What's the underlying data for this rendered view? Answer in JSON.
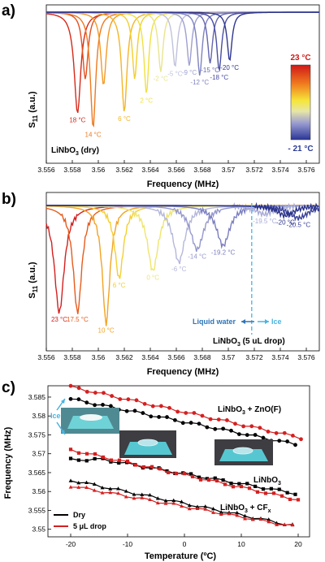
{
  "colors": {
    "red": "#d42020",
    "black": "#000000",
    "cyan": "#48b4e0",
    "blue_arrow": "#2d74b8",
    "cold_blue": "#2b3a96",
    "hot_red": "#d01818"
  },
  "chart_data": [
    {
      "type": "line",
      "panel_label": "a)",
      "xlabel": "Frequency (MHz)",
      "ylabel": "S11 (a.u.)",
      "xlim": [
        3.556,
        3.577
      ],
      "xticks": [
        "3.556",
        "3.558",
        "3.56",
        "3.562",
        "3.564",
        "3.566",
        "3.568",
        "3.57",
        "3.572",
        "3.574",
        "3.576"
      ],
      "inset": "LiNbO3 (dry)",
      "colorbar": {
        "top_label": "23 °C",
        "bottom_label": "- 21 °C"
      },
      "dips": [
        {
          "temp_label": "18 °C",
          "center": 3.5584,
          "depth": 0.83,
          "width": 0.0003,
          "color": "#d42a1a"
        },
        {
          "temp_label": "",
          "center": 3.559,
          "depth": 0.55,
          "width": 0.00025,
          "color": "#e25020"
        },
        {
          "temp_label": "14 °C",
          "center": 3.5596,
          "depth": 0.95,
          "width": 0.00025,
          "color": "#ee7a20"
        },
        {
          "temp_label": "",
          "center": 3.5604,
          "depth": 0.6,
          "width": 0.00025,
          "color": "#f29a26"
        },
        {
          "temp_label": "6 °C",
          "center": 3.562,
          "depth": 0.82,
          "width": 0.00025,
          "color": "#f4b528"
        },
        {
          "temp_label": "",
          "center": 3.5628,
          "depth": 0.55,
          "width": 0.00022,
          "color": "#f2cf2e"
        },
        {
          "temp_label": "2 °C",
          "center": 3.5637,
          "depth": 0.67,
          "width": 0.00022,
          "color": "#f0e040"
        },
        {
          "temp_label": "-2 °C",
          "center": 3.5648,
          "depth": 0.49,
          "width": 0.00022,
          "color": "#e8e590"
        },
        {
          "temp_label": "-5 °C",
          "center": 3.5659,
          "depth": 0.45,
          "width": 0.00022,
          "color": "#c0c2dc"
        },
        {
          "temp_label": "-9 °C",
          "center": 3.567,
          "depth": 0.44,
          "width": 0.00022,
          "color": "#9ea0cf"
        },
        {
          "temp_label": "-12 °C",
          "center": 3.5678,
          "depth": 0.52,
          "width": 0.00022,
          "color": "#7f83c0"
        },
        {
          "temp_label": "-15 °C",
          "center": 3.5686,
          "depth": 0.42,
          "width": 0.00022,
          "color": "#6466b0"
        },
        {
          "temp_label": "-18 °C",
          "center": 3.5693,
          "depth": 0.48,
          "width": 0.00022,
          "color": "#4a4ea2"
        },
        {
          "temp_label": "-20 °C",
          "center": 3.5701,
          "depth": 0.4,
          "width": 0.00022,
          "color": "#2e3690"
        }
      ]
    },
    {
      "type": "line",
      "panel_label": "b)",
      "xlabel": "Frequency (MHz)",
      "ylabel": "S11 (a.u.)",
      "xlim": [
        3.556,
        3.577
      ],
      "xticks": [
        "3.556",
        "3.558",
        "3.56",
        "3.562",
        "3.564",
        "3.566",
        "3.568",
        "3.57",
        "3.572",
        "3.574",
        "3.576"
      ],
      "inset": "LiNbO3 (5 uL drop)",
      "phase_line_x": 3.5718,
      "liquid_label": "Liquid water",
      "ice_label": "Ice",
      "dips": [
        {
          "temp_label": "23 °C",
          "center": 3.557,
          "depth": 0.85,
          "width": 0.00045,
          "color": "#d42020"
        },
        {
          "temp_label": "17.5 °C",
          "center": 3.5584,
          "depth": 0.85,
          "width": 0.0004,
          "color": "#e55c1e"
        },
        {
          "temp_label": "10 °C",
          "center": 3.5606,
          "depth": 0.94,
          "width": 0.00035,
          "color": "#f2a324"
        },
        {
          "temp_label": "6 °C",
          "center": 3.5616,
          "depth": 0.58,
          "width": 0.0004,
          "color": "#f4cf30"
        },
        {
          "temp_label": "0 °C",
          "center": 3.5642,
          "depth": 0.52,
          "width": 0.0005,
          "color": "#efe56e"
        },
        {
          "temp_label": "-6 °C",
          "center": 3.5662,
          "depth": 0.45,
          "width": 0.00055,
          "color": "#b4b7da"
        },
        {
          "temp_label": "-14 °C",
          "center": 3.5676,
          "depth": 0.35,
          "width": 0.0006,
          "color": "#9598cc"
        },
        {
          "temp_label": "-19.2 °C",
          "center": 3.5696,
          "depth": 0.32,
          "width": 0.0006,
          "color": "#7a7ec0"
        },
        {
          "temp_label": "-19.5 °C",
          "center": 3.5728,
          "depth": 0.07,
          "width": 0.0008,
          "color": "#a8acd6"
        },
        {
          "temp_label": "-20.5 °C",
          "center": 3.5754,
          "depth": 0.1,
          "width": 0.0009,
          "color": "#3a4298"
        },
        {
          "temp_label": "-20 °C",
          "center": 3.5744,
          "depth": 0.08,
          "width": 0.0008,
          "color": "#2a3288"
        }
      ]
    },
    {
      "type": "line",
      "panel_label": "c)",
      "xlabel": "Temperature (ºC)",
      "ylabel": "Frequency (MHz)",
      "xlim": [
        -24,
        22
      ],
      "ylim": [
        3.548,
        3.588
      ],
      "xticks": [
        "-20",
        "-10",
        "0",
        "10",
        "20"
      ],
      "yticks": [
        "3.55",
        "3.555",
        "3.56",
        "3.565",
        "3.57",
        "3.575",
        "3.58",
        "3.585"
      ],
      "legend": {
        "dry": "Dry",
        "drop": "5 μL drop"
      },
      "ice_label": "Ice",
      "series_labels": {
        "zno": "LiNbO3 + ZnO(F)",
        "bare": "LiNbO3",
        "cfx": "LiNbO3 + CFx"
      },
      "series": [
        {
          "group": "zno",
          "kind": "dry",
          "start": [
            -20,
            3.5845
          ],
          "end": [
            19.5,
            3.5725
          ]
        },
        {
          "group": "zno",
          "kind": "drop",
          "start": [
            -20,
            3.5877
          ],
          "end": [
            20.5,
            3.5742
          ]
        },
        {
          "group": "bare",
          "kind": "dry",
          "start": [
            -20,
            3.57
          ],
          "end": [
            19.5,
            3.5595
          ]
        },
        {
          "group": "bare",
          "kind": "drop",
          "start": [
            -20,
            3.571
          ],
          "end": [
            20,
            3.5578
          ]
        },
        {
          "group": "cfx",
          "kind": "dry",
          "start": [
            -20,
            3.563
          ],
          "end": [
            19,
            3.551
          ]
        },
        {
          "group": "cfx",
          "kind": "drop",
          "start": [
            -20,
            3.5615
          ],
          "end": [
            19,
            3.5508
          ]
        }
      ]
    }
  ]
}
